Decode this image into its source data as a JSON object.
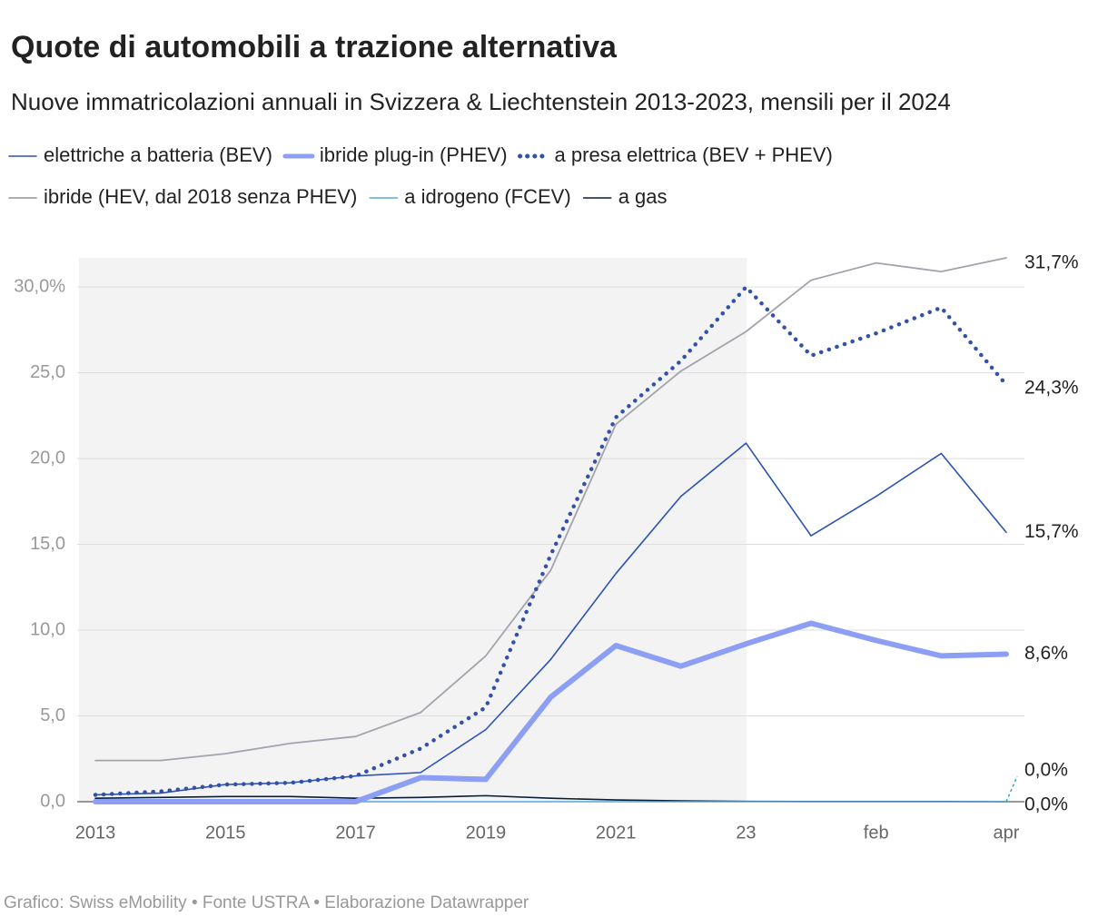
{
  "chart_data": {
    "type": "line",
    "title": "Quote di automobili a trazione alternativa",
    "subtitle": "Nuove immatricolazioni annuali in Svizzera & Liechtenstein 2013-2023, mensili per il 2024",
    "source": "Grafico: Swiss eMobility • Fonte USTRA • Elaborazione Datawrapper",
    "categories": [
      "2013",
      null,
      "2015",
      null,
      "2017",
      null,
      "2019",
      null,
      "2021",
      null,
      "23",
      null,
      "feb",
      null,
      "apr"
    ],
    "ylim": [
      0,
      31.7
    ],
    "yticks": [
      {
        "value": 0,
        "label": "0,0"
      },
      {
        "value": 5,
        "label": "5,0"
      },
      {
        "value": 10,
        "label": "10,0"
      },
      {
        "value": 15,
        "label": "15,0"
      },
      {
        "value": 20,
        "label": "20,0"
      },
      {
        "value": 25,
        "label": "25,0"
      },
      {
        "value": 30,
        "label": "30,0%"
      }
    ],
    "grid": true,
    "series": [
      {
        "name": "elettriche a batteria (BEV)",
        "color": "#2d52b5",
        "width": 1.6,
        "values": [
          0.4,
          0.5,
          1.0,
          1.1,
          1.5,
          1.7,
          4.2,
          8.3,
          13.3,
          17.8,
          20.9,
          15.5,
          17.8,
          20.3,
          15.7
        ],
        "value_labels": [
          null,
          null,
          null,
          null,
          null,
          null,
          null,
          null,
          null,
          null,
          null,
          null,
          null,
          null,
          "15,7%"
        ]
      },
      {
        "name": "ibride plug-in (PHEV)",
        "color": "#8c9ff5",
        "width": 6,
        "values": [
          0,
          0,
          0,
          0,
          0,
          1.4,
          1.3,
          6.1,
          9.1,
          7.9,
          9.2,
          10.4,
          9.4,
          8.5,
          8.6
        ],
        "value_labels": [
          null,
          null,
          null,
          null,
          null,
          null,
          null,
          null,
          null,
          null,
          null,
          null,
          null,
          null,
          "8,6%"
        ]
      },
      {
        "name": "a presa elettrica (BEV + PHEV)",
        "color": "#3351a6",
        "width": 4.5,
        "dotted": true,
        "values": [
          0.4,
          0.6,
          1.0,
          1.1,
          1.5,
          3.1,
          5.5,
          14.4,
          22.4,
          25.7,
          30.0,
          26.0,
          27.3,
          28.8,
          24.3
        ],
        "value_labels": [
          null,
          null,
          null,
          null,
          null,
          null,
          null,
          null,
          null,
          null,
          null,
          null,
          null,
          null,
          "24,3%"
        ]
      },
      {
        "name": "ibride (HEV, dal 2018 senza PHEV)",
        "color": "#a3a3ad",
        "width": 1.8,
        "values": [
          2.4,
          2.4,
          2.8,
          3.4,
          3.8,
          5.2,
          8.5,
          13.5,
          22.0,
          25.1,
          27.4,
          30.4,
          31.4,
          30.9,
          31.7
        ],
        "value_labels": [
          null,
          null,
          null,
          null,
          null,
          null,
          null,
          null,
          null,
          null,
          null,
          null,
          null,
          null,
          "31,7%"
        ]
      },
      {
        "name": "a idrogeno (FCEV)",
        "color": "#5aa7d8",
        "width": 1.6,
        "values": [
          0,
          0,
          0,
          0,
          0,
          0,
          0,
          0,
          0,
          0,
          0,
          0,
          0,
          0,
          0
        ],
        "value_labels": [
          null,
          null,
          null,
          null,
          null,
          null,
          null,
          null,
          null,
          null,
          null,
          null,
          null,
          null,
          "0,0%"
        ]
      },
      {
        "name": "a gas",
        "color": "#0b1d33",
        "width": 1.6,
        "values": [
          0.2,
          0.25,
          0.3,
          0.3,
          0.2,
          0.25,
          0.35,
          0.2,
          0.1,
          0.05,
          0.02,
          0.01,
          0.01,
          0.01,
          0
        ],
        "value_labels": [
          null,
          null,
          null,
          null,
          null,
          null,
          null,
          null,
          null,
          null,
          null,
          null,
          null,
          null,
          "0,0%"
        ]
      }
    ]
  }
}
